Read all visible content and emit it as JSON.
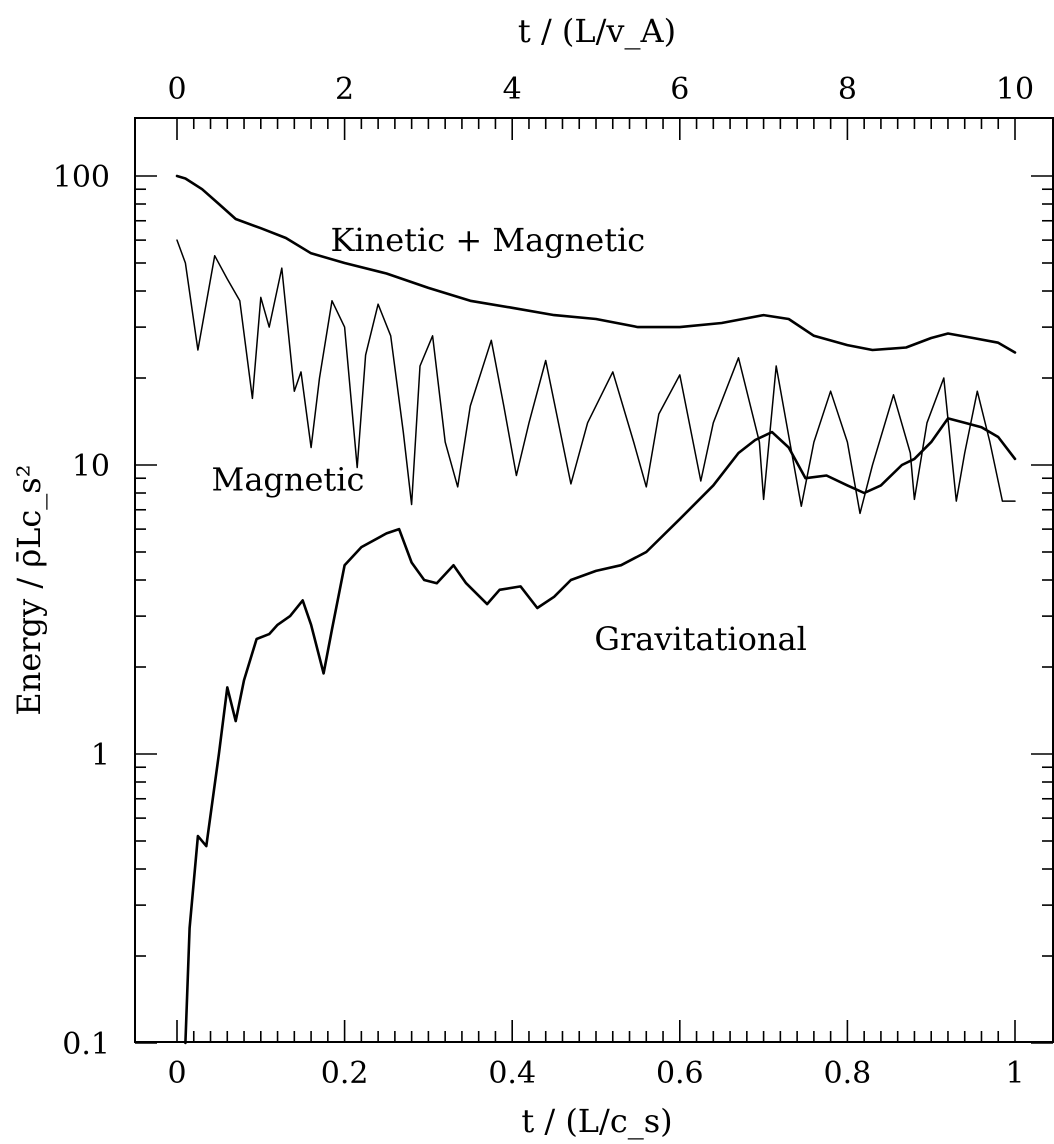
{
  "chart_data": {
    "type": "line",
    "title": "",
    "xlabel": "t / (L/c_s)",
    "xlabel_top": "t / (L/v_A)",
    "ylabel": "Energy / ρ̄Lc_s²",
    "xlim": [
      0,
      1
    ],
    "xlim_top": [
      0,
      10
    ],
    "ylim": [
      0.1,
      160
    ],
    "yscale": "log",
    "grid": false,
    "x_ticks": [
      "0",
      "0.2",
      "0.4",
      "0.6",
      "0.8",
      "1"
    ],
    "x_ticks_top": [
      "0",
      "2",
      "4",
      "6",
      "8",
      "10"
    ],
    "y_ticks": [
      "0.1",
      "1",
      "10",
      "100"
    ],
    "annotations": [
      {
        "text": "Kinetic + Magnetic",
        "x": 0.46,
        "y": 60
      },
      {
        "text": "Magnetic",
        "x": 0.12,
        "y": 8.9
      },
      {
        "text": "Gravitational",
        "x": 0.51,
        "y": 2.5
      }
    ],
    "series": [
      {
        "label": "Kinetic + Magnetic",
        "x": [
          0,
          0.01,
          0.03,
          0.05,
          0.07,
          0.1,
          0.13,
          0.16,
          0.2,
          0.25,
          0.3,
          0.35,
          0.4,
          0.45,
          0.5,
          0.55,
          0.6,
          0.65,
          0.7,
          0.73,
          0.76,
          0.8,
          0.83,
          0.87,
          0.9,
          0.92,
          0.95,
          0.98,
          1.0
        ],
        "y": [
          100,
          98,
          90,
          80,
          71,
          66,
          61,
          54,
          50,
          46,
          41,
          37,
          35,
          33,
          32,
          30,
          30,
          31,
          33,
          32,
          28,
          26,
          25,
          25.5,
          27.5,
          28.5,
          27.5,
          26.5,
          24.5
        ]
      },
      {
        "label": "Magnetic",
        "x": [
          0,
          0.01,
          0.025,
          0.045,
          0.06,
          0.075,
          0.09,
          0.1,
          0.11,
          0.125,
          0.14,
          0.148,
          0.16,
          0.17,
          0.185,
          0.2,
          0.215,
          0.225,
          0.24,
          0.255,
          0.27,
          0.28,
          0.29,
          0.305,
          0.32,
          0.335,
          0.35,
          0.375,
          0.39,
          0.405,
          0.42,
          0.44,
          0.47,
          0.49,
          0.52,
          0.545,
          0.56,
          0.575,
          0.6,
          0.625,
          0.64,
          0.67,
          0.695,
          0.7,
          0.715,
          0.745,
          0.76,
          0.78,
          0.8,
          0.815,
          0.83,
          0.855,
          0.875,
          0.88,
          0.895,
          0.915,
          0.93,
          0.94,
          0.955,
          0.97,
          0.985,
          1.0
        ],
        "y": [
          60,
          50,
          25,
          53,
          44,
          37,
          17,
          38,
          30,
          48,
          18,
          21,
          11.5,
          20,
          37,
          30,
          9.8,
          24,
          36,
          28,
          13,
          7.3,
          22,
          28,
          12,
          8.4,
          16,
          27,
          16,
          9.2,
          14,
          23,
          8.6,
          14,
          21,
          12,
          8.4,
          15,
          20.5,
          8.8,
          14,
          23.5,
          12,
          7.6,
          22,
          7.2,
          12,
          18,
          12,
          6.8,
          10,
          17.5,
          11,
          7.6,
          14,
          20,
          7.5,
          11,
          18,
          12,
          7.5,
          7.5
        ]
      },
      {
        "label": "Gravitational",
        "x": [
          0.01,
          0.015,
          0.025,
          0.035,
          0.05,
          0.06,
          0.07,
          0.08,
          0.095,
          0.11,
          0.12,
          0.135,
          0.15,
          0.16,
          0.175,
          0.185,
          0.2,
          0.22,
          0.25,
          0.265,
          0.28,
          0.295,
          0.31,
          0.33,
          0.345,
          0.37,
          0.385,
          0.41,
          0.43,
          0.45,
          0.47,
          0.5,
          0.53,
          0.56,
          0.6,
          0.64,
          0.67,
          0.69,
          0.71,
          0.73,
          0.75,
          0.775,
          0.8,
          0.82,
          0.84,
          0.865,
          0.88,
          0.9,
          0.92,
          0.94,
          0.96,
          0.98,
          1.0
        ],
        "y": [
          0.1,
          0.25,
          0.52,
          0.48,
          1.0,
          1.7,
          1.3,
          1.8,
          2.5,
          2.6,
          2.8,
          3.0,
          3.4,
          2.8,
          1.9,
          2.7,
          4.5,
          5.2,
          5.8,
          6.0,
          4.6,
          4.0,
          3.9,
          4.5,
          3.9,
          3.3,
          3.7,
          3.8,
          3.2,
          3.5,
          4.0,
          4.3,
          4.5,
          5.0,
          6.5,
          8.5,
          11,
          12.2,
          13,
          11.5,
          9.0,
          9.2,
          8.5,
          8.0,
          8.5,
          10,
          10.5,
          12,
          14.5,
          14,
          13.5,
          12.5,
          10.5
        ]
      }
    ]
  }
}
